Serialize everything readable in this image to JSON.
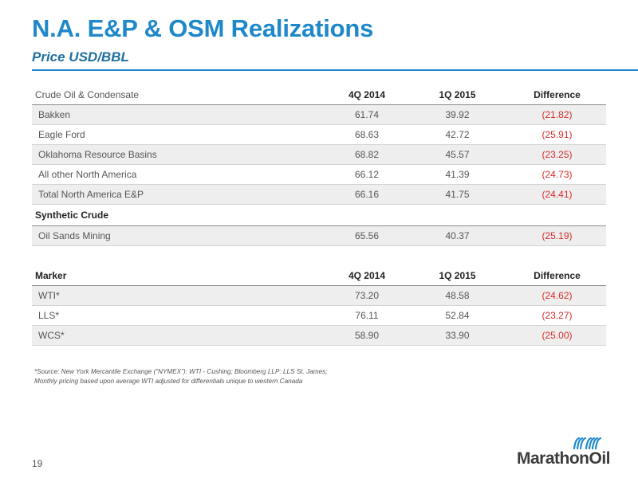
{
  "slide": {
    "title": "N.A. E&P & OSM Realizations",
    "subtitle": "Price USD/BBL",
    "page_number": "19"
  },
  "crude_table": {
    "headers": [
      "Crude Oil & Condensate",
      "4Q 2014",
      "1Q 2015",
      "Difference"
    ],
    "rows": [
      {
        "name": "Bakken",
        "q4_2014": "61.74",
        "q1_2015": "39.92",
        "difference": "(21.82)"
      },
      {
        "name": "Eagle Ford",
        "q4_2014": "68.63",
        "q1_2015": "42.72",
        "difference": "(25.91)"
      },
      {
        "name": "Oklahoma Resource Basins",
        "q4_2014": "68.82",
        "q1_2015": "45.57",
        "difference": "(23.25)"
      },
      {
        "name": "All other North America",
        "q4_2014": "66.12",
        "q1_2015": "41.39",
        "difference": "(24.73)"
      },
      {
        "name": "Total North America E&P",
        "q4_2014": "66.16",
        "q1_2015": "41.75",
        "difference": "(24.41)"
      }
    ],
    "synthetic_section_label": "Synthetic Crude",
    "synthetic_rows": [
      {
        "name": "Oil Sands Mining",
        "q4_2014": "65.56",
        "q1_2015": "40.37",
        "difference": "(25.19)"
      }
    ]
  },
  "marker_table": {
    "headers": [
      "Marker",
      "4Q 2014",
      "1Q 2015",
      "Difference"
    ],
    "rows": [
      {
        "name": "WTI*",
        "q4_2014": "73.20",
        "q1_2015": "48.58",
        "difference": "(24.62)"
      },
      {
        "name": "LLS*",
        "q4_2014": "76.11",
        "q1_2015": "52.84",
        "difference": "(23.27)"
      },
      {
        "name": "WCS*",
        "q4_2014": "58.90",
        "q1_2015": "33.90",
        "difference": "(25.00)"
      }
    ]
  },
  "footnote": {
    "line1": "*Source: New York Mercantile Exchange (“NYMEX”): WTI - Cushing; Bloomberg LLP: LLS St. James;",
    "line2": "Monthly pricing based upon average WTI adjusted for differentials unique to western Canada"
  },
  "logo": {
    "text": "MarathonOil",
    "icon": "marathon-wave-icon",
    "color": "#1e88c9"
  },
  "colors": {
    "title": "#1e88c9",
    "negative_value": "#d42c2c",
    "row_shade": "#eeeeee"
  }
}
